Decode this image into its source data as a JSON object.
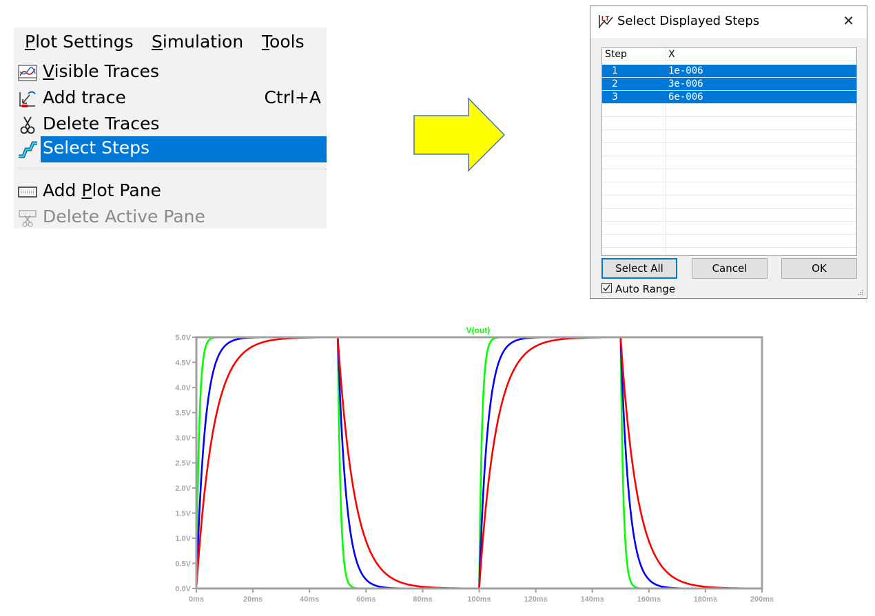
{
  "menu": {
    "menubar": [
      {
        "pre": "",
        "u": "P",
        "post": "lot Settings"
      },
      {
        "pre": "",
        "u": "S",
        "post": "imulation"
      },
      {
        "pre": "",
        "u": "T",
        "post": "ools"
      }
    ],
    "items": [
      {
        "pre": "",
        "u": "V",
        "post": "isible Traces",
        "shortcut": "",
        "icon": "visible-traces-icon"
      },
      {
        "pre": "Add trace",
        "u": "",
        "post": "",
        "shortcut": "Ctrl+A",
        "icon": "add-trace-icon"
      },
      {
        "pre": "Delete Traces",
        "u": "",
        "post": "",
        "shortcut": "",
        "icon": "scissors-icon"
      },
      {
        "pre": "Select Steps",
        "u": "",
        "post": "",
        "shortcut": "",
        "icon": "select-steps-icon",
        "selected": true
      },
      {
        "pre": "Add ",
        "u": "P",
        "post": "lot Pane",
        "shortcut": "",
        "icon": "add-plot-pane-icon"
      },
      {
        "pre": "Delete Active Pane",
        "u": "",
        "post": "",
        "shortcut": "",
        "icon": "delete-pane-icon",
        "disabled": true
      }
    ]
  },
  "dialog": {
    "title": "Select Displayed Steps",
    "close": "✕",
    "columns": [
      "Step",
      "X"
    ],
    "rows": [
      {
        "step": "1",
        "x": "1e-006"
      },
      {
        "step": "2",
        "x": "3e-006"
      },
      {
        "step": "3",
        "x": "6e-006"
      }
    ],
    "buttons": {
      "select_all": "Select All",
      "cancel": "Cancel",
      "ok": "OK"
    },
    "auto_range_label": "Auto Range",
    "auto_range_checked": true
  },
  "colors": {
    "accent": "#0078d7",
    "arrow_fill": "#ffff00",
    "arrow_stroke": "#4472c4"
  },
  "chart_data": {
    "type": "line",
    "title": "V(out)",
    "title_color": "#00ff00",
    "x_ticks": [
      "0ms",
      "20ms",
      "40ms",
      "60ms",
      "80ms",
      "100ms",
      "120ms",
      "140ms",
      "160ms",
      "180ms",
      "200ms"
    ],
    "y_ticks": [
      "0.0V",
      "0.5V",
      "1.0V",
      "1.5V",
      "2.0V",
      "2.5V",
      "3.0V",
      "3.5V",
      "4.0V",
      "4.5V",
      "5.0V"
    ],
    "xlim": [
      0,
      200
    ],
    "ylim": [
      0,
      5
    ],
    "signal": {
      "high": 5.0,
      "low": 0.0,
      "period_ms": 100,
      "rise_at_ms": [
        0,
        100
      ],
      "fall_at_ms": [
        50,
        150
      ]
    },
    "series": [
      {
        "color": "#00ff00",
        "tau_ms": 1.0
      },
      {
        "color": "#0000ff",
        "tau_ms": 3.0
      },
      {
        "color": "#ff0000",
        "tau_ms": 6.0
      }
    ]
  }
}
